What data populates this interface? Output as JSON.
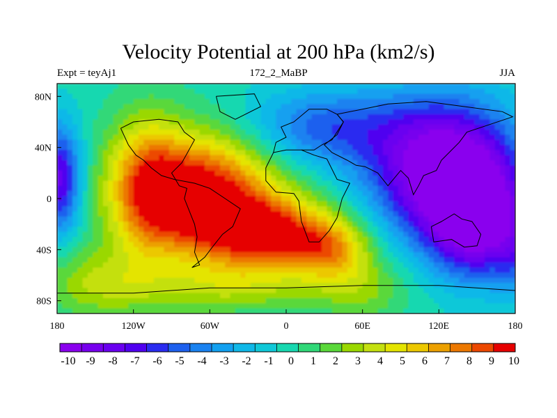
{
  "chart_data": {
    "type": "heatmap",
    "title": "Velocity Potential at 200 hPa (km2/s)",
    "left_string": "Expt = teyAj1",
    "center_string": "172_2_MaBP",
    "right_string": "JJA",
    "xlim": [
      -180,
      180
    ],
    "ylim": [
      -90,
      90
    ],
    "x_ticks": [
      -180,
      -120,
      -60,
      0,
      60,
      120,
      180
    ],
    "x_tick_labels": [
      "180",
      "120W",
      "60W",
      "0",
      "60E",
      "120E",
      "180"
    ],
    "y_ticks": [
      80,
      40,
      0,
      -40,
      -80
    ],
    "y_tick_labels": [
      "80N",
      "40N",
      "0",
      "40S",
      "80S"
    ],
    "colorbar_levels": [
      -10,
      -9,
      -8,
      -7,
      -6,
      -5,
      -4,
      -3,
      -2,
      -1,
      0,
      1,
      2,
      3,
      4,
      5,
      6,
      7,
      8,
      9,
      10
    ],
    "colorbar_label_values": [
      "-10",
      "-9",
      "-8",
      "-7",
      "-6",
      "-5",
      "-4",
      "-3",
      "-2",
      "-1",
      "0",
      "1",
      "2",
      "3",
      "4",
      "5",
      "6",
      "7",
      "8",
      "9",
      "10"
    ],
    "field_features": [
      {
        "lon": -70,
        "lat": 5,
        "value": 11
      },
      {
        "lon": -20,
        "lat": -25,
        "value": 10
      },
      {
        "lon": 20,
        "lat": -35,
        "value": 9
      },
      {
        "lon": 125,
        "lat": 25,
        "value": -10
      },
      {
        "lon": 145,
        "lat": -20,
        "value": -9
      },
      {
        "lon": -175,
        "lat": 15,
        "value": -7
      },
      {
        "lon": -160,
        "lat": -55,
        "value": 4
      },
      {
        "lon": 70,
        "lat": -70,
        "value": 3
      }
    ],
    "colorbar_colors": [
      "#8a00ee",
      "#7700ee",
      "#6a00f0",
      "#5000f0",
      "#2a2cf0",
      "#1e60ee",
      "#1a82f0",
      "#12a0f0",
      "#10b8e8",
      "#10c8d8",
      "#18d8b0",
      "#30d878",
      "#5ad83a",
      "#9ad800",
      "#c4e010",
      "#e4e400",
      "#ecc800",
      "#eca000",
      "#ec7800",
      "#ec4800",
      "#e60000"
    ],
    "grid": false,
    "colorbar_position": "bottom"
  }
}
